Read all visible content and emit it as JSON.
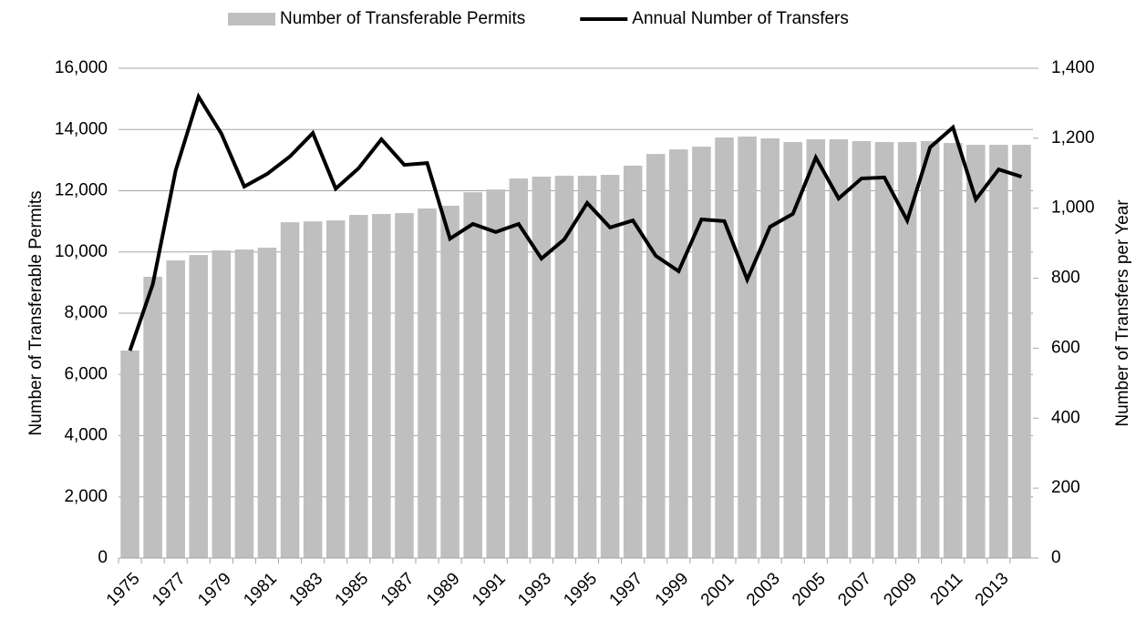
{
  "chart_data": {
    "type": "bar_line",
    "categories": [
      "1975",
      null,
      "1977",
      null,
      "1979",
      null,
      "1981",
      null,
      "1983",
      null,
      "1985",
      null,
      "1987",
      null,
      "1989",
      null,
      "1991",
      null,
      "1993",
      null,
      "1995",
      null,
      "1997",
      null,
      "1999",
      null,
      "2001",
      null,
      "2003",
      null,
      "2005",
      null,
      "2007",
      null,
      "2009",
      null,
      "2011",
      null,
      "2013",
      null
    ],
    "series": [
      {
        "name": "Number of Transferable Permits",
        "type": "bar",
        "color": "#bfbfbf",
        "values": [
          6780,
          9190,
          9725,
          9900,
          10050,
          10080,
          10140,
          10970,
          11000,
          11030,
          11210,
          11240,
          11270,
          11420,
          11510,
          11950,
          12040,
          12400,
          12460,
          12490,
          12490,
          12520,
          12820,
          13200,
          13350,
          13440,
          13740,
          13770,
          13710,
          13590,
          13680,
          13680,
          13620,
          13590,
          13590,
          13620,
          13560,
          13500,
          13500,
          13500
        ]
      },
      {
        "name": "Annual Number of Transfers",
        "type": "line",
        "color": "#000000",
        "axis": "y2",
        "values": [
          593,
          783,
          1108,
          1319,
          1213,
          1062,
          1098,
          1148,
          1215,
          1056,
          1114,
          1197,
          1124,
          1129,
          913,
          955,
          932,
          955,
          856,
          911,
          1015,
          945,
          965,
          864,
          820,
          968,
          963,
          796,
          947,
          984,
          1145,
          1028,
          1085,
          1088,
          965,
          1174,
          1231,
          1025,
          1111,
          1090
        ]
      }
    ],
    "ylabel": "Number of Transferable Permits",
    "y2label": "Number of Transfers per Year",
    "ylim": [
      0,
      16000
    ],
    "yticks": [
      0,
      {
        "value": 2000,
        "label": "2,000"
      },
      {
        "value": 4000,
        "label": "4,000"
      },
      {
        "value": 6000,
        "label": "6,000"
      },
      {
        "value": 8000,
        "label": "8,000"
      },
      {
        "value": 10000,
        "label": "10,000"
      },
      {
        "value": 12000,
        "label": "12,000"
      },
      {
        "value": 14000,
        "label": "14,000"
      },
      {
        "value": 16000,
        "label": "16,000"
      }
    ],
    "y2lim": [
      0,
      1400
    ],
    "y2ticks": [
      0,
      200,
      400,
      600,
      800,
      {
        "value": 1000,
        "label": "1,000"
      },
      {
        "value": 1200,
        "label": "1,200"
      },
      {
        "value": 1400,
        "label": "1,400"
      }
    ],
    "grid": true,
    "legend": "top"
  }
}
